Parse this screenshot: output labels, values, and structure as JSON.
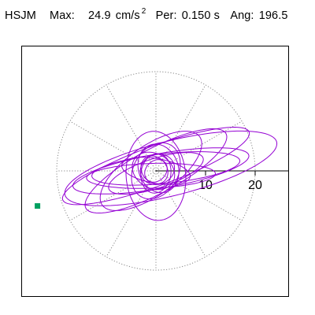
{
  "header": {
    "station": "HSJM",
    "max_label": "Max:",
    "max_value": "24.9",
    "max_unit": "cm/s",
    "max_unit_exp": "2",
    "period_label": "Per:",
    "period_value": "0.150 s",
    "angle_label": "Ang:",
    "angle_value": "196.5"
  },
  "chart_data": {
    "type": "polar-orbit",
    "max_amplitude": 24.9,
    "peak_angle_deg": 196.5,
    "period_s": 0.15,
    "radial_ticks": [
      {
        "value": 10,
        "label": "10"
      },
      {
        "value": 20,
        "label": "20"
      }
    ],
    "ring_radius": 20,
    "spokes": 12,
    "colors": {
      "trace": "#9400d3",
      "grid": "#888888",
      "peak_marker": "#00a060",
      "axis": "#000000"
    },
    "orbit_loops": [
      {
        "a": 22,
        "b": 5.5,
        "rot": 14,
        "cx": 3,
        "cy": 0.5
      },
      {
        "a": 20,
        "b": 4.0,
        "rot": 20,
        "cx": 0,
        "cy": 1
      },
      {
        "a": 18,
        "b": 3.5,
        "rot": 10,
        "cx": 1,
        "cy": 0
      },
      {
        "a": 16,
        "b": 4.5,
        "rot": 28,
        "cx": 0,
        "cy": 0
      },
      {
        "a": 15,
        "b": 3.0,
        "rot": 6,
        "cx": 2,
        "cy": 0.5
      },
      {
        "a": 12,
        "b": 5.0,
        "rot": 35,
        "cx": -1,
        "cy": 0
      },
      {
        "a": 10,
        "b": 3.0,
        "rot": 18,
        "cx": 0,
        "cy": -0.5
      },
      {
        "a": 6,
        "b": 4.5,
        "rot": 60,
        "cx": 0,
        "cy": 0
      },
      {
        "a": 5,
        "b": 4.0,
        "rot": 110,
        "cx": 0.5,
        "cy": 0.5
      },
      {
        "a": 4.5,
        "b": 3.5,
        "rot": 150,
        "cx": -0.5,
        "cy": 0
      },
      {
        "a": 4,
        "b": 3.0,
        "rot": 80,
        "cx": 0,
        "cy": -0.5
      },
      {
        "a": 3.5,
        "b": 3.0,
        "rot": 20,
        "cx": 0.3,
        "cy": 0.3
      },
      {
        "a": 3,
        "b": 2.5,
        "rot": 130,
        "cx": -0.3,
        "cy": 0.2
      },
      {
        "a": 2.5,
        "b": 2.0,
        "rot": 45,
        "cx": 0,
        "cy": 0
      },
      {
        "a": 9,
        "b": 6.0,
        "rot": 95,
        "cx": 0,
        "cy": -1
      },
      {
        "a": 7,
        "b": 2.5,
        "rot": 170,
        "cx": 0,
        "cy": 0
      },
      {
        "a": 13,
        "b": 2.5,
        "rot": 2,
        "cx": -1,
        "cy": -1
      }
    ]
  }
}
